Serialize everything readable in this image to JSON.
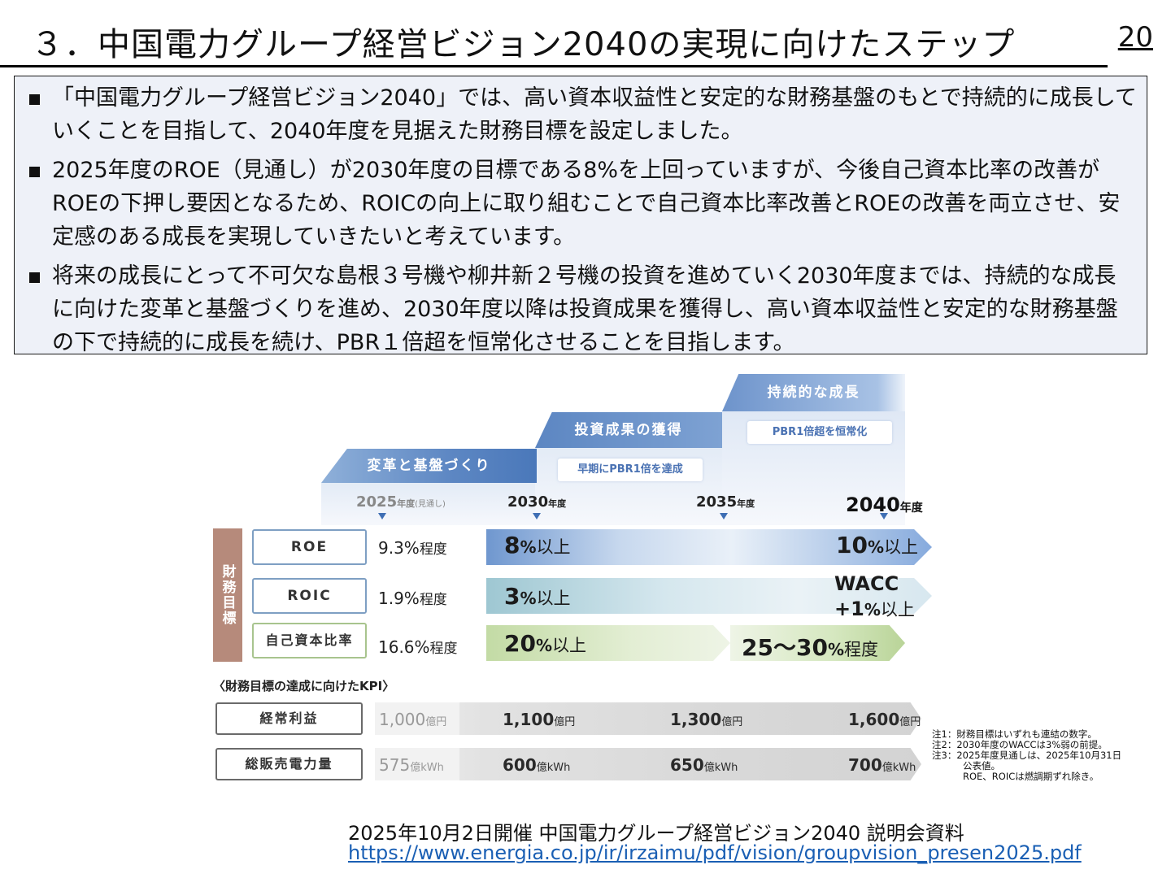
{
  "header": {
    "title": "３．中国電力グループ経営ビジョン2040の実現に向けたステップ",
    "page_number": "20"
  },
  "summary": {
    "bullets": [
      "「中国電力グループ経営ビジョン2040」では、高い資本収益性と安定的な財務基盤のもとで持続的に成長していくことを目指して、2040年度を見据えた財務目標を設定しました。",
      "2025年度のROE（見通し）が2030年度の目標である8%を上回っていますが、今後自己資本比率の改善がROEの下押し要因となるため、ROICの向上に取り組むことで自己資本比率改善とROEの改善を両立させ、安定感のある成長を実現していきたいと考えています。",
      "将来の成長にとって不可欠な島根３号機や柳井新２号機の投資を進めていく2030年度までは、持続的な成長に向けた変革と基盤づくりを進め、2030年度以降は投資成果を獲得し、高い資本収益性と安定的な財務基盤の下で持続的に成長を続け、PBR１倍超を恒常化させることを目指します。"
    ]
  },
  "figure": {
    "stages": [
      {
        "label": "変革と基盤づくり"
      },
      {
        "label": "投資成果の獲得",
        "goal": "早期にPBR1倍を達成"
      },
      {
        "label": "持続的な成長",
        "goal": "PBR1倍超を恒常化"
      }
    ],
    "years": [
      {
        "num": "2025",
        "suffix": "年度",
        "note": "(見通し)"
      },
      {
        "num": "2030",
        "suffix": "年度"
      },
      {
        "num": "2035",
        "suffix": "年度"
      },
      {
        "num": "2040",
        "suffix": "年度"
      }
    ],
    "category_label": "財務目標",
    "targets": [
      {
        "metric": "ROE",
        "current": "9.3%",
        "current_suffix": "程度",
        "y2030_num": "8",
        "y2030_unit": "%",
        "y2030_qual": "以上",
        "y2040_num": "10",
        "y2040_unit": "%",
        "y2040_qual": "以上"
      },
      {
        "metric": "ROIC",
        "current": "1.9%",
        "current_suffix": "程度",
        "y2030_num": "3",
        "y2030_unit": "%",
        "y2030_qual": "以上",
        "y2040_line1": "WACC",
        "y2040_num": "+1",
        "y2040_unit": "%",
        "y2040_qual": "以上"
      },
      {
        "metric": "自己資本比率",
        "current": "16.6%",
        "current_suffix": "程度",
        "y2030_num": "20",
        "y2030_unit": "%",
        "y2030_qual": "以上",
        "y2040_num": "25～30",
        "y2040_unit": "%",
        "y2040_qual": "程度"
      }
    ],
    "kpi_heading": "〈財務目標の達成に向けたKPI〉",
    "kpis": [
      {
        "metric": "経常利益",
        "unit": "億円",
        "values": [
          "1,000",
          "1,100",
          "1,300",
          "1,600"
        ]
      },
      {
        "metric": "総販売電力量",
        "unit": "億kWh",
        "values": [
          "575",
          "600",
          "650",
          "700"
        ]
      }
    ],
    "notes": [
      "注1：財務目標はいずれも連結の数字。",
      "注2：2030年度のWACCは3%弱の前提。",
      "注3：2025年度見通しは、2025年10月31日",
      "公表値。",
      "ROE、ROICは燃調期ずれ除き。"
    ]
  },
  "source": {
    "caption": "2025年10月2日開催 中国電力グループ経営ビジョン2040 説明会資料",
    "url": "https://www.energia.co.jp/ir/irzaimu/pdf/vision/groupvision_presen2025.pdf"
  }
}
